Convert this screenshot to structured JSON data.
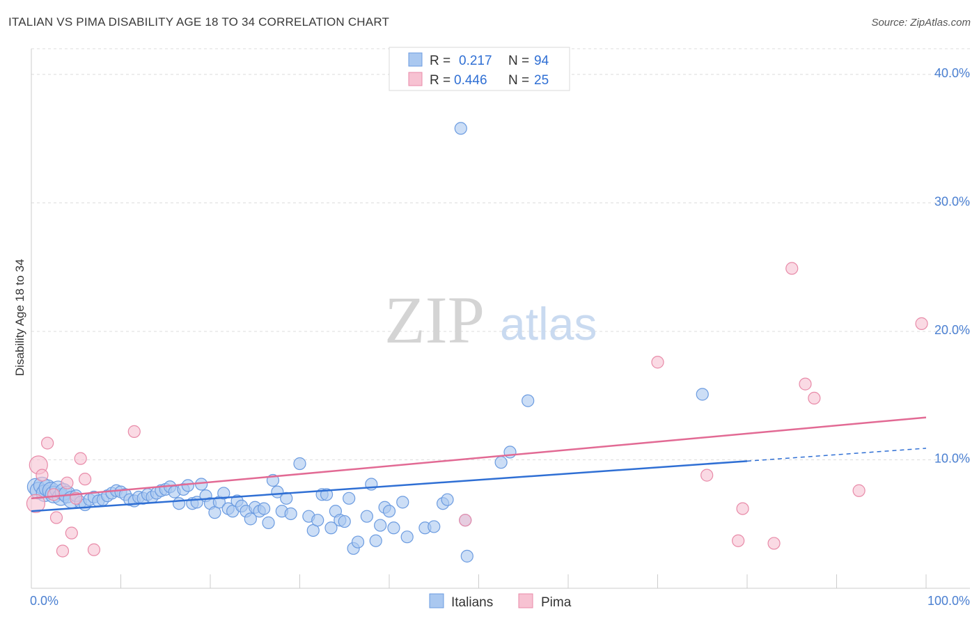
{
  "title": "ITALIAN VS PIMA DISABILITY AGE 18 TO 34 CORRELATION CHART",
  "source": "Source: ZipAtlas.com",
  "watermark": {
    "zip": "ZIP",
    "atlas": "atlas"
  },
  "colors": {
    "italians_fill": "#aac8f0",
    "italians_stroke": "#6b9be0",
    "italians_line": "#2f6fd4",
    "pima_fill": "#f7c2d2",
    "pima_stroke": "#e88aa8",
    "pima_line": "#e26a94",
    "tick_text": "#4a7fd1",
    "grid": "#dcdcdc"
  },
  "stats": [
    {
      "r_label": "R =",
      "r_value": "0.217",
      "n_label": "N =",
      "n_value": "94"
    },
    {
      "r_label": "R =",
      "r_value": "0.446",
      "n_label": "N =",
      "n_value": "25"
    }
  ],
  "chart_data": {
    "type": "scatter",
    "ylabel": "Disability Age 18 to 34",
    "xlim": [
      0,
      100
    ],
    "ylim": [
      0,
      42
    ],
    "x_tick_labels": [
      {
        "value": 0,
        "label": "0.0%"
      },
      {
        "value": 100,
        "label": "100.0%"
      }
    ],
    "y_ticks": [
      {
        "value": 10,
        "label": "10.0%"
      },
      {
        "value": 20,
        "label": "20.0%"
      },
      {
        "value": 30,
        "label": "30.0%"
      },
      {
        "value": 40,
        "label": "40.0%"
      }
    ],
    "grid": true,
    "legend_position": "bottom-center",
    "series": [
      {
        "name": "Italians",
        "points": [
          [
            0.5,
            7.9
          ],
          [
            0.8,
            7.6
          ],
          [
            1.2,
            8.0
          ],
          [
            1.5,
            7.4
          ],
          [
            1.8,
            7.8
          ],
          [
            2.2,
            7.6
          ],
          [
            2.5,
            7.3
          ],
          [
            3.0,
            7.7
          ],
          [
            3.3,
            7.1
          ],
          [
            3.6,
            7.5
          ],
          [
            4.0,
            7.3
          ],
          [
            4.5,
            6.9
          ],
          [
            5.0,
            7.2
          ],
          [
            5.5,
            6.7
          ],
          [
            6.0,
            6.5
          ],
          [
            6.5,
            6.9
          ],
          [
            7.0,
            7.1
          ],
          [
            7.5,
            6.8
          ],
          [
            8.0,
            6.9
          ],
          [
            8.5,
            7.2
          ],
          [
            9.0,
            7.4
          ],
          [
            9.5,
            7.6
          ],
          [
            10.0,
            7.5
          ],
          [
            10.5,
            7.3
          ],
          [
            11.0,
            6.9
          ],
          [
            11.5,
            6.8
          ],
          [
            12.0,
            7.1
          ],
          [
            12.5,
            7.0
          ],
          [
            13.0,
            7.3
          ],
          [
            13.5,
            7.1
          ],
          [
            14.0,
            7.4
          ],
          [
            14.5,
            7.6
          ],
          [
            15.0,
            7.7
          ],
          [
            15.5,
            7.9
          ],
          [
            16.0,
            7.5
          ],
          [
            16.5,
            6.6
          ],
          [
            17.0,
            7.7
          ],
          [
            17.5,
            8.0
          ],
          [
            18.0,
            6.6
          ],
          [
            18.5,
            6.7
          ],
          [
            19.0,
            8.1
          ],
          [
            19.5,
            7.2
          ],
          [
            20.0,
            6.6
          ],
          [
            20.5,
            5.9
          ],
          [
            21.0,
            6.7
          ],
          [
            21.5,
            7.4
          ],
          [
            22.0,
            6.2
          ],
          [
            22.5,
            6.0
          ],
          [
            23.0,
            6.8
          ],
          [
            23.5,
            6.4
          ],
          [
            24.0,
            6.0
          ],
          [
            24.5,
            5.4
          ],
          [
            25.0,
            6.3
          ],
          [
            25.5,
            6.0
          ],
          [
            26.0,
            6.2
          ],
          [
            26.5,
            5.1
          ],
          [
            27.0,
            8.4
          ],
          [
            27.5,
            7.5
          ],
          [
            28.0,
            6.0
          ],
          [
            28.5,
            7.0
          ],
          [
            29.0,
            5.8
          ],
          [
            30.0,
            9.7
          ],
          [
            31.0,
            5.6
          ],
          [
            31.5,
            4.5
          ],
          [
            32.0,
            5.3
          ],
          [
            32.5,
            7.3
          ],
          [
            33.0,
            7.3
          ],
          [
            33.5,
            4.7
          ],
          [
            34.0,
            6.0
          ],
          [
            34.5,
            5.3
          ],
          [
            35.0,
            5.2
          ],
          [
            35.5,
            7.0
          ],
          [
            36.0,
            3.1
          ],
          [
            36.5,
            3.6
          ],
          [
            37.5,
            5.6
          ],
          [
            38.0,
            8.1
          ],
          [
            38.5,
            3.7
          ],
          [
            39.0,
            4.9
          ],
          [
            39.5,
            6.3
          ],
          [
            40.0,
            6.0
          ],
          [
            40.5,
            4.7
          ],
          [
            41.5,
            6.7
          ],
          [
            42.0,
            4.0
          ],
          [
            44.0,
            4.7
          ],
          [
            45.0,
            4.8
          ],
          [
            46.0,
            6.6
          ],
          [
            46.5,
            6.9
          ],
          [
            48.5,
            5.3
          ],
          [
            48.7,
            2.5
          ],
          [
            48.0,
            35.8
          ],
          [
            52.5,
            9.8
          ],
          [
            53.5,
            10.6
          ],
          [
            55.5,
            14.6
          ],
          [
            75.0,
            15.1
          ]
        ],
        "trend": {
          "x0": 0,
          "y0": 6.0,
          "x1": 80,
          "y1": 9.9,
          "dashed_to_x": 100,
          "dashed_to_y": 10.9
        }
      },
      {
        "name": "Pima",
        "points": [
          [
            0.5,
            6.6
          ],
          [
            0.8,
            9.6
          ],
          [
            1.2,
            8.8
          ],
          [
            1.8,
            11.3
          ],
          [
            2.5,
            7.3
          ],
          [
            2.8,
            5.5
          ],
          [
            3.5,
            2.9
          ],
          [
            4.0,
            8.2
          ],
          [
            4.5,
            4.3
          ],
          [
            5.0,
            7.0
          ],
          [
            5.5,
            10.1
          ],
          [
            6.0,
            8.5
          ],
          [
            7.0,
            3.0
          ],
          [
            11.5,
            12.2
          ],
          [
            48.5,
            5.3
          ],
          [
            70.0,
            17.6
          ],
          [
            75.5,
            8.8
          ],
          [
            79.0,
            3.7
          ],
          [
            79.5,
            6.2
          ],
          [
            83.0,
            3.5
          ],
          [
            85.0,
            24.9
          ],
          [
            86.5,
            15.9
          ],
          [
            87.5,
            14.8
          ],
          [
            92.5,
            7.6
          ],
          [
            99.5,
            20.6
          ]
        ],
        "trend": {
          "x0": 0,
          "y0": 7.0,
          "x1": 100,
          "y1": 13.3
        }
      }
    ]
  },
  "legend": {
    "italians_label": "Italians",
    "pima_label": "Pima"
  }
}
